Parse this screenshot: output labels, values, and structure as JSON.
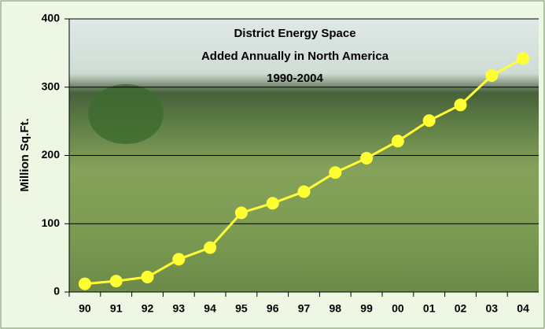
{
  "chart_data": {
    "type": "line",
    "title": [
      "District Energy Space",
      "Added Annually in North America",
      "1990-2004"
    ],
    "y_label": "Million Sq.Ft.",
    "categories": [
      "90",
      "91",
      "92",
      "93",
      "94",
      "95",
      "96",
      "97",
      "98",
      "99",
      "00",
      "01",
      "02",
      "03",
      "04"
    ],
    "values": [
      12,
      16,
      22,
      48,
      65,
      116,
      130,
      147,
      175,
      196,
      221,
      251,
      274,
      317,
      342
    ],
    "color": "#ffff33",
    "ylim": [
      0,
      400
    ],
    "yticks": [
      0,
      100,
      200,
      300,
      400
    ],
    "grid": true
  }
}
